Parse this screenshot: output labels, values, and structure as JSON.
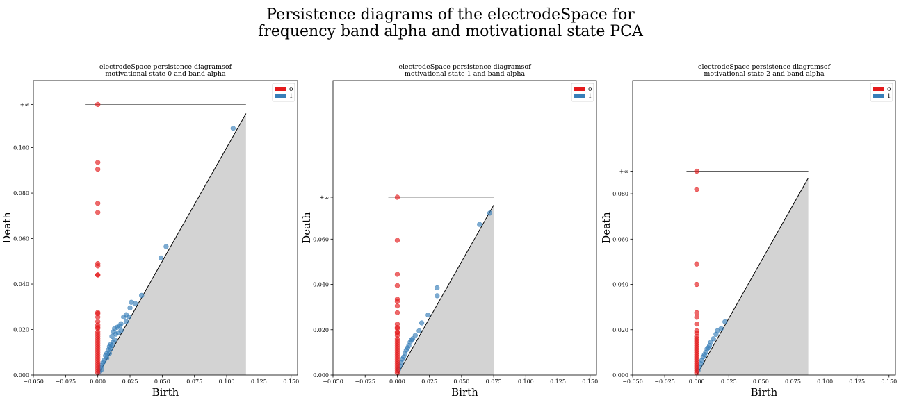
{
  "figure": {
    "title_line1": "Persistence diagrams of the electrodeSpace for",
    "title_line2": "frequency band alpha and motivational state PCA"
  },
  "colors": {
    "h0": "#e41a1c",
    "h1": "#377eb8",
    "diag_fill": "#d3d3d3",
    "axis": "#000000"
  },
  "chart_data": [
    {
      "type": "scatter",
      "title_line1": "electrodeSpace persistence diagramsof",
      "title_line2": "motivational state 0 and band  alpha",
      "xlabel": "Birth",
      "ylabel": "Death",
      "xlim": [
        -0.05,
        0.155
      ],
      "ylim": [
        0,
        0.1295
      ],
      "xticks": [
        "−0.050",
        "−0.025",
        "0.000",
        "0.025",
        "0.050",
        "0.075",
        "0.100",
        "0.125",
        "0.150"
      ],
      "xtick_values": [
        -0.05,
        -0.025,
        0,
        0.025,
        0.05,
        0.075,
        0.1,
        0.125,
        0.15
      ],
      "yticks": [
        "0.000",
        "0.020",
        "0.040",
        "0.060",
        "0.080",
        "0.100"
      ],
      "ytick_values": [
        0,
        0.02,
        0.04,
        0.06,
        0.08,
        0.1
      ],
      "inf_label": "+∞",
      "inf_value": 0.119,
      "inf_line_x": [
        -0.01,
        0.115
      ],
      "diag_max": 0.115,
      "legend": [
        "0",
        "1"
      ],
      "legend_position": "top-right",
      "series": [
        {
          "name": "0",
          "points": [
            [
              0,
              0.119
            ],
            [
              0,
              0.0935
            ],
            [
              0,
              0.0905
            ],
            [
              0,
              0.0755
            ],
            [
              0,
              0.0715
            ],
            [
              0,
              0.049
            ],
            [
              0,
              0.048
            ],
            [
              0,
              0.044
            ],
            [
              0,
              0.044
            ],
            [
              0,
              0.0275
            ],
            [
              0,
              0.027
            ],
            [
              0,
              0.0255
            ],
            [
              0,
              0.0235
            ],
            [
              0,
              0.022
            ],
            [
              0,
              0.021
            ],
            [
              0,
              0.0205
            ],
            [
              0,
              0.019
            ],
            [
              0,
              0.018
            ],
            [
              0,
              0.017
            ],
            [
              0,
              0.016
            ],
            [
              0,
              0.015
            ],
            [
              0,
              0.014
            ],
            [
              0,
              0.013
            ],
            [
              0,
              0.012
            ],
            [
              0,
              0.011
            ],
            [
              0,
              0.01
            ],
            [
              0,
              0.009
            ],
            [
              0,
              0.008
            ],
            [
              0,
              0.007
            ],
            [
              0,
              0.006
            ],
            [
              0,
              0.005
            ],
            [
              0,
              0.004
            ],
            [
              0,
              0.003
            ],
            [
              0,
              0.002
            ],
            [
              0,
              0.001
            ]
          ]
        },
        {
          "name": "1",
          "points": [
            [
              0.105,
              0.1085
            ],
            [
              0.053,
              0.0565
            ],
            [
              0.049,
              0.0515
            ],
            [
              0.034,
              0.035
            ],
            [
              0.029,
              0.0315
            ],
            [
              0.026,
              0.032
            ],
            [
              0.025,
              0.0295
            ],
            [
              0.022,
              0.0265
            ],
            [
              0.02,
              0.0255
            ],
            [
              0.018,
              0.0225
            ],
            [
              0.017,
              0.0215
            ],
            [
              0.015,
              0.021
            ],
            [
              0.013,
              0.0205
            ],
            [
              0.012,
              0.019
            ],
            [
              0.014,
              0.018
            ],
            [
              0.011,
              0.017
            ],
            [
              0.013,
              0.0155
            ],
            [
              0.012,
              0.0145
            ],
            [
              0.01,
              0.0135
            ],
            [
              0.009,
              0.0125
            ],
            [
              0.011,
              0.013
            ],
            [
              0.01,
              0.0115
            ],
            [
              0.008,
              0.011
            ],
            [
              0.009,
              0.0095
            ],
            [
              0.007,
              0.0095
            ],
            [
              0.006,
              0.0085
            ],
            [
              0.007,
              0.0075
            ],
            [
              0.005,
              0.0065
            ],
            [
              0.004,
              0.0055
            ],
            [
              0.003,
              0.0045
            ],
            [
              0.002,
              0.0035
            ],
            [
              0.003,
              0.0025
            ],
            [
              0.001,
              0.0015
            ],
            [
              0.018,
              0.0195
            ],
            [
              0.016,
              0.0185
            ],
            [
              0.022,
              0.0235
            ],
            [
              0.024,
              0.0255
            ]
          ]
        }
      ]
    },
    {
      "type": "scatter",
      "title_line1": "electrodeSpace persistence diagramsof",
      "title_line2": "motivational state 1 and band  alpha",
      "xlabel": "Birth",
      "ylabel": "Death",
      "xlim": [
        -0.05,
        0.155
      ],
      "ylim": [
        0,
        0.13
      ],
      "xticks": [
        "−0.050",
        "−0.025",
        "0.000",
        "0.025",
        "0.050",
        "0.075",
        "0.100",
        "0.125",
        "0.150"
      ],
      "xtick_values": [
        -0.05,
        -0.025,
        0,
        0.025,
        0.05,
        0.075,
        0.1,
        0.125,
        0.15
      ],
      "yticks": [
        "0.000",
        "0.020",
        "0.040",
        "0.060"
      ],
      "ytick_values": [
        0,
        0.02,
        0.04,
        0.06
      ],
      "inf_label": "+∞",
      "inf_value": 0.0785,
      "inf_line_x": [
        -0.007,
        0.075
      ],
      "diag_max": 0.075,
      "legend": [
        "0",
        "1"
      ],
      "legend_position": "top-right",
      "series": [
        {
          "name": "0",
          "points": [
            [
              0,
              0.0785
            ],
            [
              0,
              0.0595
            ],
            [
              0,
              0.0445
            ],
            [
              0,
              0.0395
            ],
            [
              0,
              0.0335
            ],
            [
              0,
              0.0325
            ],
            [
              0,
              0.0305
            ],
            [
              0,
              0.0275
            ],
            [
              0,
              0.0225
            ],
            [
              0,
              0.021
            ],
            [
              0,
              0.0205
            ],
            [
              0,
              0.019
            ],
            [
              0,
              0.0185
            ],
            [
              0,
              0.0175
            ],
            [
              0,
              0.016
            ],
            [
              0,
              0.015
            ],
            [
              0,
              0.014
            ],
            [
              0,
              0.013
            ],
            [
              0,
              0.012
            ],
            [
              0,
              0.011
            ],
            [
              0,
              0.01
            ],
            [
              0,
              0.009
            ],
            [
              0,
              0.008
            ],
            [
              0,
              0.007
            ],
            [
              0,
              0.006
            ],
            [
              0,
              0.005
            ],
            [
              0,
              0.004
            ],
            [
              0,
              0.003
            ],
            [
              0,
              0.002
            ],
            [
              0,
              0.001
            ]
          ]
        },
        {
          "name": "1",
          "points": [
            [
              0.072,
              0.0715
            ],
            [
              0.064,
              0.0665
            ],
            [
              0.031,
              0.0385
            ],
            [
              0.031,
              0.035
            ],
            [
              0.024,
              0.0265
            ],
            [
              0.019,
              0.023
            ],
            [
              0.017,
              0.0195
            ],
            [
              0.014,
              0.0175
            ],
            [
              0.012,
              0.016
            ],
            [
              0.011,
              0.0155
            ],
            [
              0.01,
              0.0145
            ],
            [
              0.009,
              0.013
            ],
            [
              0.008,
              0.012
            ],
            [
              0.007,
              0.011
            ],
            [
              0.006,
              0.0095
            ],
            [
              0.005,
              0.008
            ],
            [
              0.004,
              0.007
            ],
            [
              0.003,
              0.0055
            ],
            [
              0.002,
              0.004
            ],
            [
              0.001,
              0.0025
            ]
          ]
        }
      ]
    },
    {
      "type": "scatter",
      "title_line1": "electrodeSpace persistence diagramsof",
      "title_line2": "motivational state 2 and band  alpha",
      "xlabel": "Birth",
      "ylabel": "Death",
      "xlim": [
        -0.05,
        0.155
      ],
      "ylim": [
        0,
        0.13
      ],
      "xticks": [
        "−0.050",
        "−0.025",
        "0.000",
        "0.025",
        "0.050",
        "0.075",
        "0.100",
        "0.125",
        "0.150"
      ],
      "xtick_values": [
        -0.05,
        -0.025,
        0,
        0.025,
        0.05,
        0.075,
        0.1,
        0.125,
        0.15
      ],
      "yticks": [
        "0.000",
        "0.020",
        "0.040",
        "0.060",
        "0.080"
      ],
      "ytick_values": [
        0,
        0.02,
        0.04,
        0.06,
        0.08
      ],
      "inf_label": "+∞",
      "inf_value": 0.09,
      "inf_line_x": [
        -0.008,
        0.087
      ],
      "diag_max": 0.087,
      "legend": [
        "0",
        "1"
      ],
      "legend_position": "top-right",
      "series": [
        {
          "name": "0",
          "points": [
            [
              0,
              0.09
            ],
            [
              0,
              0.082
            ],
            [
              0,
              0.049
            ],
            [
              0,
              0.04
            ],
            [
              0,
              0.0275
            ],
            [
              0,
              0.0255
            ],
            [
              0,
              0.0225
            ],
            [
              0,
              0.0195
            ],
            [
              0,
              0.0185
            ],
            [
              0,
              0.017
            ],
            [
              0,
              0.016
            ],
            [
              0,
              0.015
            ],
            [
              0,
              0.014
            ],
            [
              0,
              0.013
            ],
            [
              0,
              0.012
            ],
            [
              0,
              0.011
            ],
            [
              0,
              0.01
            ],
            [
              0,
              0.009
            ],
            [
              0,
              0.008
            ],
            [
              0,
              0.007
            ],
            [
              0,
              0.006
            ],
            [
              0,
              0.005
            ],
            [
              0,
              0.004
            ],
            [
              0,
              0.003
            ],
            [
              0,
              0.002
            ],
            [
              0,
              0.001
            ]
          ]
        },
        {
          "name": "1",
          "points": [
            [
              0.022,
              0.0235
            ],
            [
              0.019,
              0.0205
            ],
            [
              0.016,
              0.0195
            ],
            [
              0.015,
              0.018
            ],
            [
              0.013,
              0.016
            ],
            [
              0.011,
              0.0145
            ],
            [
              0.01,
              0.013
            ],
            [
              0.009,
              0.012
            ],
            [
              0.008,
              0.0115
            ],
            [
              0.007,
              0.01
            ],
            [
              0.006,
              0.009
            ],
            [
              0.005,
              0.008
            ],
            [
              0.004,
              0.0065
            ],
            [
              0.003,
              0.005
            ],
            [
              0.002,
              0.0035
            ],
            [
              0.001,
              0.002
            ]
          ]
        }
      ]
    }
  ]
}
